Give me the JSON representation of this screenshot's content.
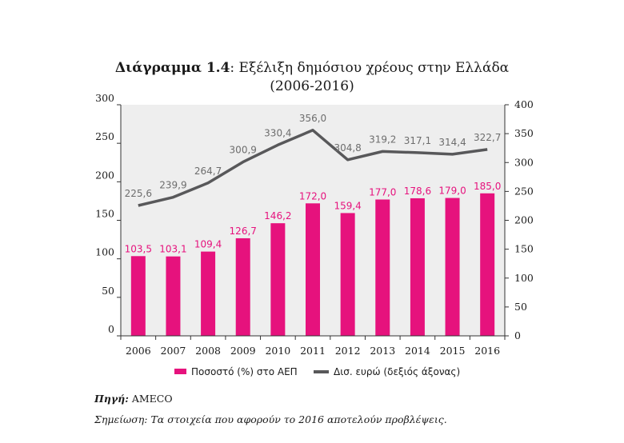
{
  "title_prefix": "Διάγραμμα 1.4",
  "title_rest": ": Εξέλιξη δημόσιου χρέους στην Ελλάδα",
  "title_line2": "(2006-2016)",
  "source_label": "Πηγή:",
  "source_value": " AMECO",
  "note_text": "Σημείωση: Τα στοιχεία που αφορούν το 2016 αποτελούν προβλέψεις.",
  "colors": {
    "bar": "#e6127d",
    "line": "#58585a",
    "plot_bg": "#eeeeee",
    "bar_label": "#e6127d",
    "line_label": "#6d6d6d"
  },
  "chart_data": {
    "type": "bar",
    "title": "Διάγραμμα 1.4: Εξέλιξη δημόσιου χρέους στην Ελλάδα (2006-2016)",
    "categories": [
      "2006",
      "2007",
      "2008",
      "2009",
      "2010",
      "2011",
      "2012",
      "2013",
      "2014",
      "2015",
      "2016"
    ],
    "series": [
      {
        "name": "Ποσοστό (%) στο ΑΕΠ",
        "type": "bar",
        "axis": "left",
        "values": [
          103.5,
          103.1,
          109.4,
          126.7,
          146.2,
          172.0,
          159.4,
          177.0,
          178.6,
          179.0,
          185.0
        ],
        "labels": [
          "103,5",
          "103,1",
          "109,4",
          "126,7",
          "146,2",
          "172,0",
          "159,4",
          "177,0",
          "178,6",
          "179,0",
          "185,0"
        ]
      },
      {
        "name": "Δισ. ευρώ (δεξιός άξονας)",
        "type": "line",
        "axis": "right",
        "values": [
          225.6,
          239.9,
          264.7,
          300.9,
          330.4,
          356.0,
          304.8,
          319.2,
          317.1,
          314.4,
          322.7
        ],
        "labels": [
          "225,6",
          "239,9",
          "264,7",
          "300,9",
          "330,4",
          "356,0",
          "304,8",
          "319,2",
          "317,1",
          "314,4",
          "322,7"
        ]
      }
    ],
    "ylim_left": [
      0,
      300
    ],
    "yticks_left": [
      "0",
      "50",
      "100",
      "150",
      "200",
      "250",
      "300"
    ],
    "ylim_right": [
      0,
      400
    ],
    "yticks_right": [
      "0",
      "50",
      "100",
      "150",
      "200",
      "250",
      "300",
      "350",
      "400"
    ],
    "grid": false,
    "legend_position": "bottom"
  }
}
